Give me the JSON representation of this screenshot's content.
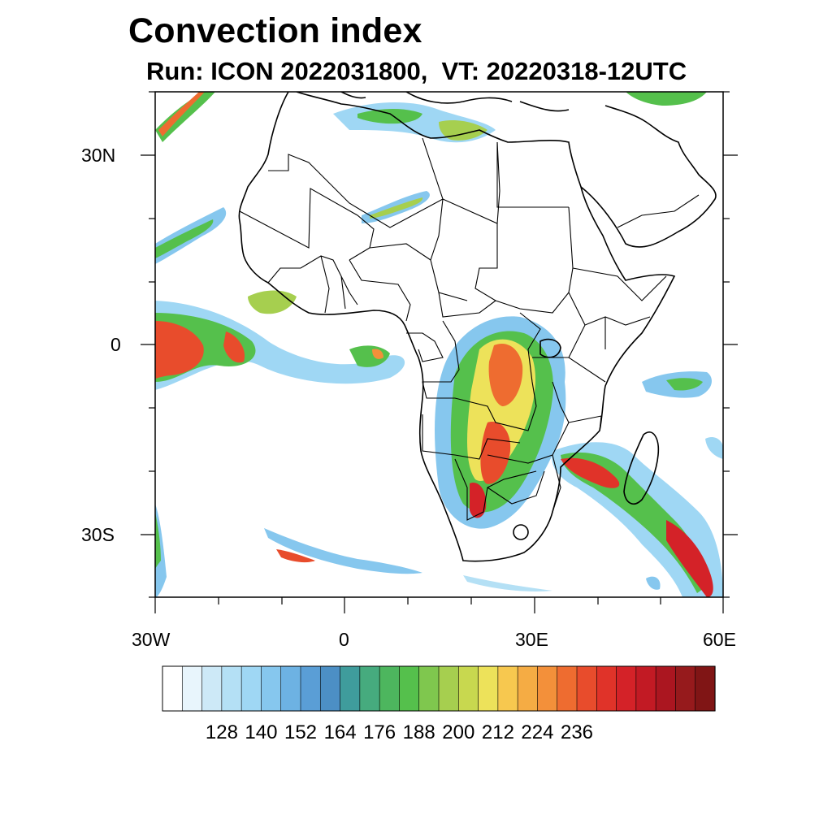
{
  "title": "Convection index",
  "subtitle": "Run: ICON 2022031800,  VT: 20220318-12UTC",
  "map": {
    "lat_ticks": [
      "30N",
      "0",
      "30S"
    ],
    "lon_ticks": [
      "30W",
      "0",
      "30E",
      "60E"
    ]
  },
  "colorbar": {
    "labels": [
      "128",
      "140",
      "152",
      "164",
      "176",
      "188",
      "200",
      "212",
      "224",
      "236"
    ],
    "colors": [
      "#ffffff",
      "#e8f5fc",
      "#cde9f7",
      "#b4e0f5",
      "#9fd7f4",
      "#86c7ee",
      "#6db2e3",
      "#5a9ed6",
      "#4c8fc5",
      "#3f9c9c",
      "#46ab7e",
      "#4db65e",
      "#55c04c",
      "#7fc74e",
      "#a6cf4f",
      "#c8d84f",
      "#ede25a",
      "#f7c84f",
      "#f5ac44",
      "#f3903a",
      "#ee6c30",
      "#e84c2c",
      "#e03329",
      "#d42228",
      "#c21a24",
      "#ab1620",
      "#961a1c",
      "#801515"
    ]
  }
}
